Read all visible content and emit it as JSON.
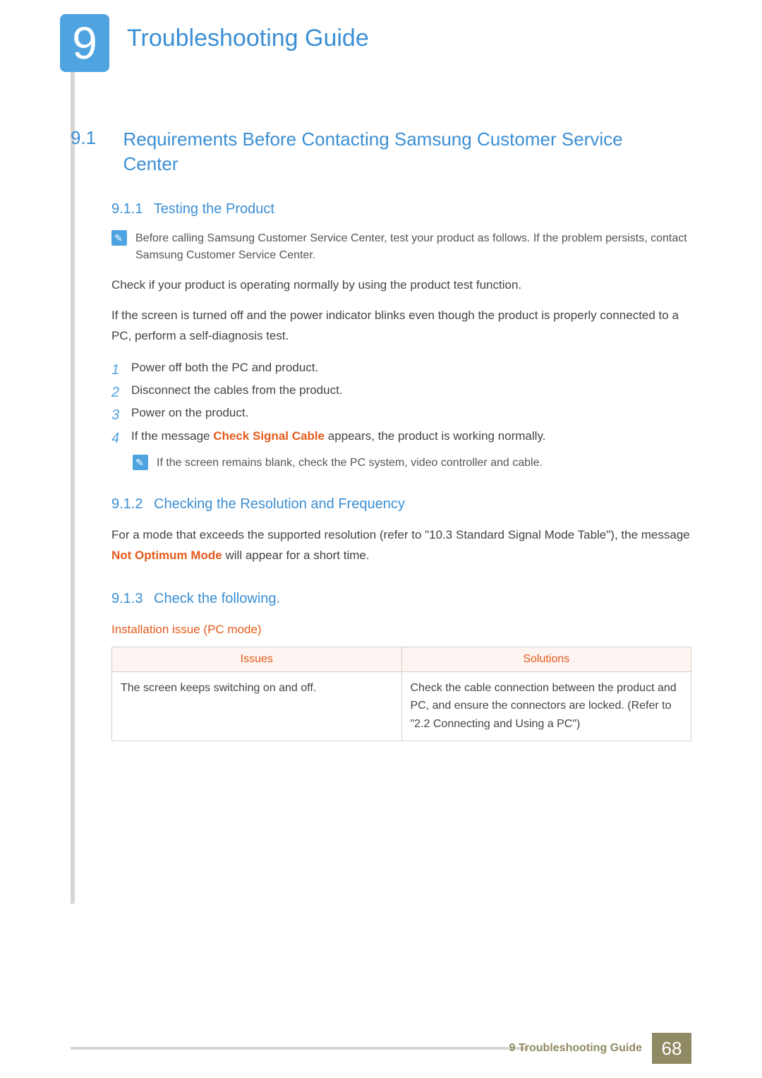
{
  "chapter": {
    "number": "9",
    "title": "Troubleshooting Guide"
  },
  "section": {
    "number": "9.1",
    "title": "Requirements Before Contacting Samsung Customer Service Center"
  },
  "sub1": {
    "number": "9.1.1",
    "title": "Testing the Product",
    "note": "Before calling Samsung Customer Service Center, test your product as follows. If the problem persists, contact Samsung Customer Service Center.",
    "p1": "Check if your product is operating normally by using the product test function.",
    "p2": "If the screen is turned off and the power indicator blinks even though the product is properly connected to a PC, perform a self-diagnosis test.",
    "steps": {
      "s1": "Power off both the PC and product.",
      "s2": "Disconnect the cables from the product.",
      "s3": "Power on the product.",
      "s4_pre": "If the message ",
      "s4_hl": "Check Signal Cable",
      "s4_post": " appears, the product is working normally."
    },
    "innernote": "If the screen remains blank, check the PC system, video controller and cable."
  },
  "sub2": {
    "number": "9.1.2",
    "title": "Checking the Resolution and Frequency",
    "p_pre": "For a mode that exceeds the supported resolution (refer to \"10.3 Standard Signal Mode Table\"), the message ",
    "p_hl": "Not Optimum Mode",
    "p_post": " will appear for a short time."
  },
  "sub3": {
    "number": "9.1.3",
    "title": "Check the following.",
    "tbl_title": "Installation issue (PC mode)",
    "col1": "Issues",
    "col2": "Solutions",
    "row1_issue": "The screen keeps switching on and off.",
    "row1_sol": "Check the cable connection between the product and PC, and ensure the connectors are locked. (Refer to \"2.2 Connecting and Using a PC\")"
  },
  "footer": {
    "label": "9 Troubleshooting Guide",
    "page": "68"
  },
  "colors": {
    "accent_blue": "#3b8fd4",
    "badge_blue": "#4ea3e0",
    "orange": "#e45b1c",
    "khaki": "#8f8a63",
    "border": "#d9cfc8",
    "thbg": "#fef4f1"
  }
}
